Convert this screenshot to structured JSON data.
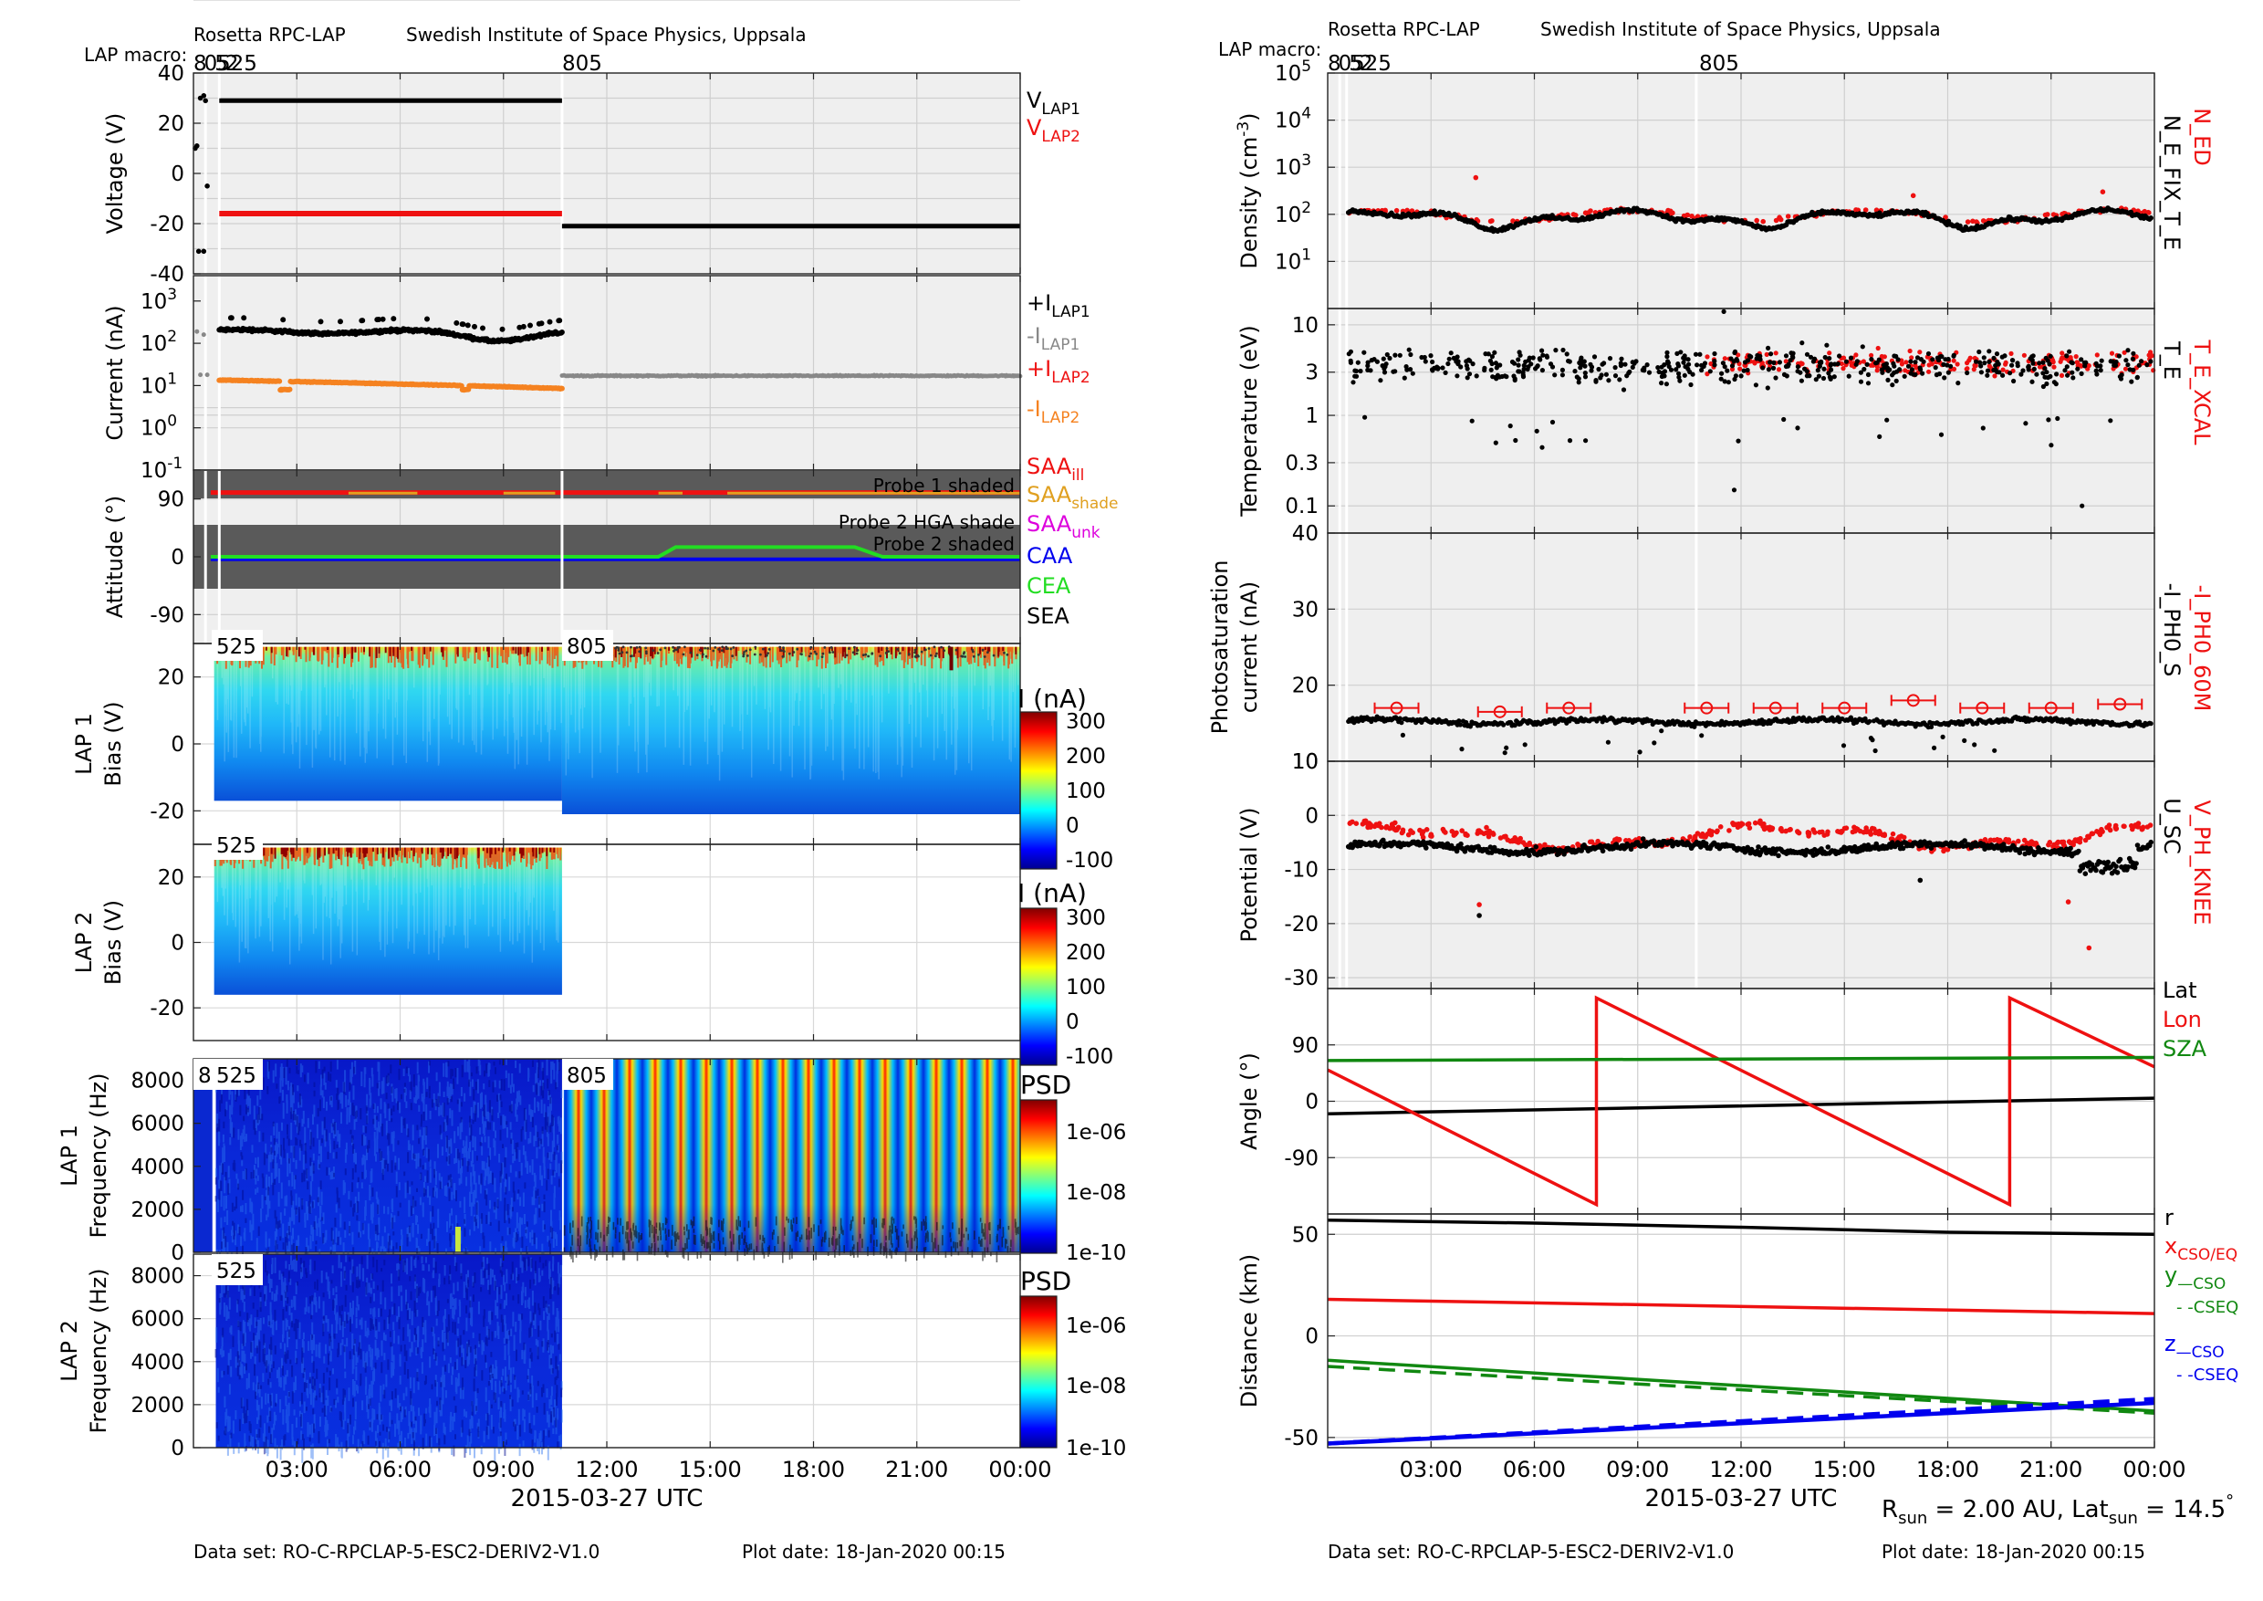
{
  "colors": {
    "red": "#ee1111",
    "black": "#000000",
    "gray": "#888888",
    "orange": "#f58220",
    "gold": "#e0a020",
    "magenta": "#dd00dd",
    "blue": "#0000ee",
    "green": "#22dd22",
    "darkgreen": "#118811",
    "shade": "#5a5a5a",
    "panel_bg": "#efefef"
  },
  "left": {
    "header": {
      "instrument": "Rosetta RPC-LAP",
      "institute": "Swedish Institute of Space Physics, Uppsala",
      "macro_label": "LAP macro:",
      "macro_early": "8052",
      "macro_mid1": "525",
      "macro_mid2": "805"
    },
    "footer": {
      "dataset": "Data set: RO-C-RPCLAP-5-ESC2-DERIV2-V1.0",
      "plot_date": "Plot date: 18-Jan-2020 00:15"
    },
    "xaxis": {
      "label": "2015-03-27 UTC",
      "ticks": [
        "03:00",
        "06:00",
        "09:00",
        "12:00",
        "15:00",
        "18:00",
        "21:00",
        "00:00"
      ]
    },
    "probe_tags": {
      "p1": "525",
      "p2": "805",
      "p8": "8"
    },
    "colorbar_I": {
      "title": "I (nA)",
      "ticks": [
        "300",
        "200",
        "100",
        "0",
        "-100"
      ]
    },
    "colorbar_PSD": {
      "title": "PSD",
      "ticks": [
        "1e-06",
        "1e-08",
        "1e-10"
      ]
    },
    "panels": {
      "voltage": {
        "ylabel": "Voltage (V)",
        "ticks": [
          "40",
          "20",
          "0",
          "-20",
          "-40"
        ]
      },
      "current": {
        "ylabel": "Current (nA)",
        "ticks": [
          "10",
          "10",
          "10",
          "10",
          "10"
        ],
        "exps": [
          "3",
          "2",
          "1",
          "0",
          "-1"
        ]
      },
      "attitude": {
        "ylabel": "Attitude (°)",
        "ticks": [
          "90",
          "0",
          "-90"
        ],
        "band1": "Probe 1 shaded",
        "band2a": "Probe 2 HGA shade",
        "band2b": "Probe 2 shaded"
      },
      "lap1_bias": {
        "ylabel1": "LAP 1",
        "ylabel2": "Bias (V)",
        "ticks": [
          "20",
          "0",
          "-20"
        ]
      },
      "lap2_bias": {
        "ylabel1": "LAP 2",
        "ylabel2": "Bias (V)",
        "ticks": [
          "20",
          "0",
          "-20"
        ]
      },
      "lap1_freq": {
        "ylabel1": "LAP 1",
        "ylabel2": "Frequency (Hz)",
        "ticks": [
          "8000",
          "6000",
          "4000",
          "2000",
          "0"
        ]
      },
      "lap2_freq": {
        "ylabel1": "LAP 2",
        "ylabel2": "Frequency (Hz)",
        "ticks": [
          "8000",
          "6000",
          "4000",
          "2000",
          "0"
        ]
      }
    },
    "legends": {
      "vlap1": "V",
      "vlap1_sub": "LAP1",
      "vlap2": "V",
      "vlap2_sub": "LAP2",
      "ilap1p": "+I",
      "ilap1p_sub": "LAP1",
      "ilap1m": "-I",
      "ilap1m_sub": "LAP1",
      "ilap2p": "+I",
      "ilap2p_sub": "LAP2",
      "ilap2m": "-I",
      "ilap2m_sub": "LAP2",
      "saa_ill": "SAA",
      "saa_ill_sub": "ill",
      "saa_shade": "SAA",
      "saa_shade_sub": "shade",
      "saa_unk": "SAA",
      "saa_unk_sub": "unk",
      "caa": "CAA",
      "cea": "CEA",
      "sea": "SEA"
    }
  },
  "right": {
    "header": {
      "instrument": "Rosetta RPC-LAP",
      "institute": "Swedish Institute of Space Physics, Uppsala",
      "macro_label": "LAP macro:",
      "macro_early": "8052",
      "macro_mid1": "525",
      "macro_mid2": "805"
    },
    "footer": {
      "dataset": "Data set: RO-C-RPCLAP-5-ESC2-DERIV2-V1.0",
      "plot_date": "Plot date: 18-Jan-2020 00:15"
    },
    "xaxis": {
      "label": "2015-03-27 UTC",
      "ticks": [
        "03:00",
        "06:00",
        "09:00",
        "12:00",
        "15:00",
        "18:00",
        "21:00",
        "00:00"
      ]
    },
    "rsun": "R",
    "rsun_sub": "sun",
    "rsun_val": " = 2.00 AU, Lat",
    "latsun_sub": "sun",
    "latsun_val": " = 14.5",
    "deg": "°",
    "panels": {
      "density": {
        "ylabel": "Density (cm",
        "ylabel_exp": "-3",
        "ylabel_end": ")",
        "ticks": [
          "10",
          "10",
          "10",
          "10",
          "10"
        ],
        "exps": [
          "5",
          "4",
          "3",
          "2",
          "1"
        ],
        "leg_red": "N_ED",
        "leg_black": "N_E_FIX_T_E"
      },
      "temperature": {
        "ylabel": "Temperature (eV)",
        "ticks": [
          "10",
          "3",
          "1",
          "0.3",
          "0.1"
        ],
        "leg_red": "T_E_XCAL",
        "leg_black": "T_E"
      },
      "photo": {
        "ylabel1": "Photosaturation",
        "ylabel2": "current (nA)",
        "ticks": [
          "40",
          "30",
          "20",
          "10"
        ],
        "leg_red": "-I_PH0_60M",
        "leg_black": "-I_PH0_S"
      },
      "potential": {
        "ylabel": "Potential (V)",
        "ticks": [
          "10",
          "0",
          "-10",
          "-20",
          "-30"
        ],
        "leg_red": "V_PH_KNEE",
        "leg_black": "U_SC"
      },
      "angle": {
        "ylabel": "Angle (°)",
        "ticks": [
          "90",
          "0",
          "-90"
        ],
        "leg_lat": "Lat",
        "leg_lon": "Lon",
        "leg_sza": "SZA"
      },
      "distance": {
        "ylabel": "Distance (km)",
        "ticks": [
          "50",
          "0",
          "-50"
        ],
        "leg_r": "r",
        "leg_x": "x",
        "leg_x_sub": "CSO/EQ",
        "leg_y": "y",
        "leg_y_sub": "—CSO",
        "leg_yeq": "- -CSEQ",
        "leg_z": "z",
        "leg_z_sub": "—CSO",
        "leg_zeq": "- -CSEQ"
      }
    }
  },
  "chart_data": [
    {
      "type": "line",
      "title": "Voltage (V)",
      "ylim": [
        -40,
        40
      ],
      "series": [
        {
          "name": "VLAP1",
          "x_hours": [
            0.75,
            10.7
          ],
          "y": [
            29,
            29
          ]
        },
        {
          "name": "VLAP1",
          "x_hours": [
            10.7,
            24.0
          ],
          "y": [
            -21,
            -21
          ]
        },
        {
          "name": "VLAP2",
          "x_hours": [
            0.75,
            10.7
          ],
          "y": [
            -16,
            -16
          ]
        }
      ]
    },
    {
      "type": "scatter",
      "title": "Current (nA)",
      "log": true,
      "ylim": [
        0.1,
        1000
      ],
      "series": [
        {
          "name": "+ILAP1",
          "x_hours": [
            0.75,
            3.0,
            6.0,
            9.0,
            10.7
          ],
          "y": [
            180,
            190,
            190,
            130,
            190
          ]
        },
        {
          "name": "-ILAP1",
          "x_hours": [
            10.7,
            24.0
          ],
          "y": [
            17,
            17
          ]
        },
        {
          "name": "-ILAP2",
          "x_hours": [
            0.75,
            10.7
          ],
          "y": [
            13,
            8
          ]
        }
      ]
    },
    {
      "type": "line",
      "title": "Attitude (°)",
      "ylim": [
        -135,
        135
      ],
      "series": [
        {
          "name": "SAAill",
          "x_hours": [
            0.5,
            24.0
          ],
          "y": [
            100,
            100
          ]
        },
        {
          "name": "CAA",
          "x_hours": [
            0.5,
            24.0
          ],
          "y": [
            -3,
            -3
          ]
        },
        {
          "name": "CEA",
          "x_hours": [
            0.5,
            13.5,
            14.0,
            19.2,
            20.0,
            24.0
          ],
          "y": [
            0,
            0,
            15,
            15,
            0,
            0
          ]
        }
      ]
    },
    {
      "type": "heatmap",
      "title": "LAP 1 Bias (V)",
      "ylim": [
        -30,
        30
      ],
      "colorbar": [
        -100,
        300
      ]
    },
    {
      "type": "heatmap",
      "title": "LAP 2 Bias (V)",
      "ylim": [
        -30,
        30
      ],
      "colorbar": [
        -100,
        300
      ]
    },
    {
      "type": "heatmap",
      "title": "LAP 1 Frequency (Hz)",
      "ylim": [
        0,
        9000
      ],
      "colorbar": [
        "1e-10",
        "1e-06"
      ]
    },
    {
      "type": "heatmap",
      "title": "LAP 2 Frequency (Hz)",
      "ylim": [
        0,
        9000
      ],
      "colorbar": [
        "1e-10",
        "1e-06"
      ]
    },
    {
      "type": "scatter",
      "title": "Density (cm-3)",
      "log": true,
      "ylim": [
        1,
        100000
      ],
      "series": [
        {
          "name": "N_E_FIX_T_E",
          "x_hours": [
            0,
            4,
            8,
            12,
            16,
            20,
            24
          ],
          "y": [
            80,
            100,
            60,
            90,
            80,
            80,
            100
          ]
        },
        {
          "name": "N_ED",
          "x_hours": [
            0,
            4,
            8,
            12,
            16,
            20,
            24
          ],
          "y": [
            80,
            120,
            70,
            100,
            90,
            90,
            110
          ]
        }
      ]
    },
    {
      "type": "scatter",
      "title": "Temperature (eV)",
      "log": true,
      "ylim": [
        0.05,
        15
      ]
    },
    {
      "type": "scatter",
      "title": "Photosaturation current (nA)",
      "ylim": [
        10,
        40
      ],
      "series": [
        {
          "name": "-I_PH0_S",
          "x_hours": [
            0,
            12,
            24
          ],
          "y": [
            15,
            15,
            16
          ]
        },
        {
          "name": "-I_PH0_60M",
          "x_hours": [
            2,
            5,
            7,
            11,
            13,
            15,
            17,
            19,
            21,
            23
          ],
          "y": [
            17,
            16.5,
            17,
            17,
            17,
            17,
            18,
            17,
            17,
            17.5
          ]
        }
      ]
    },
    {
      "type": "scatter",
      "title": "Potential (V)",
      "ylim": [
        -32,
        10
      ]
    },
    {
      "type": "line",
      "title": "Angle (°)",
      "ylim": [
        -180,
        180
      ],
      "series": [
        {
          "name": "Lat",
          "x_hours": [
            0,
            24
          ],
          "y": [
            -20,
            5
          ]
        },
        {
          "name": "Lon",
          "x_hours": [
            0,
            7.8,
            7.8,
            19.8,
            19.8,
            24
          ],
          "y": [
            50,
            -165,
            165,
            -165,
            165,
            55
          ]
        },
        {
          "name": "SZA",
          "x_hours": [
            0,
            24
          ],
          "y": [
            65,
            70
          ]
        }
      ]
    },
    {
      "type": "line",
      "title": "Distance (km)",
      "ylim": [
        -55,
        60
      ],
      "series": [
        {
          "name": "r",
          "x_hours": [
            0,
            24
          ],
          "y": [
            57,
            50
          ]
        },
        {
          "name": "xCSO/EQ",
          "x_hours": [
            0,
            24
          ],
          "y": [
            18,
            11
          ]
        },
        {
          "name": "yCSO",
          "x_hours": [
            0,
            24
          ],
          "y": [
            -12,
            -37
          ]
        },
        {
          "name": "yCSEQ",
          "x_hours": [
            0,
            24
          ],
          "y": [
            -15,
            -38
          ]
        },
        {
          "name": "zCSO",
          "x_hours": [
            0,
            24
          ],
          "y": [
            -53,
            -33
          ]
        },
        {
          "name": "zCSEQ",
          "x_hours": [
            0,
            24
          ],
          "y": [
            -53,
            -31
          ]
        }
      ]
    }
  ]
}
